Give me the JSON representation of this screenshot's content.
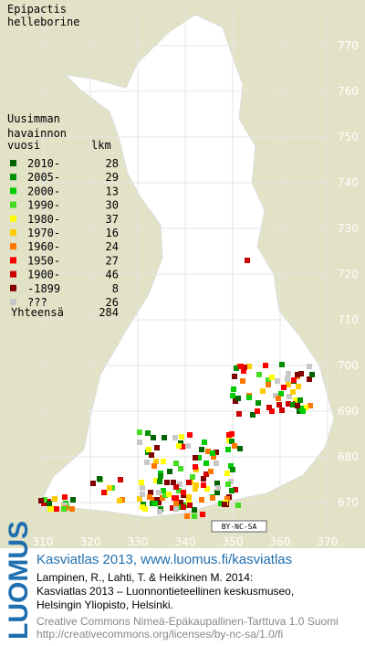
{
  "title": [
    "Epipactis",
    "helleborine"
  ],
  "legend": {
    "header": [
      "Uusimman",
      "havainnon",
      "vuosi"
    ],
    "count_header": "lkm",
    "rows": [
      {
        "label": "2010-",
        "count": 28,
        "color": "#006400"
      },
      {
        "label": "2005-",
        "count": 29,
        "color": "#009000"
      },
      {
        "label": "2000-",
        "count": 13,
        "color": "#00cc00"
      },
      {
        "label": "1990-",
        "count": 30,
        "color": "#44dd22"
      },
      {
        "label": "1980-",
        "count": 37,
        "color": "#ffff00"
      },
      {
        "label": "1970-",
        "count": 16,
        "color": "#ffcc00"
      },
      {
        "label": "1960-",
        "count": 24,
        "color": "#ff7700"
      },
      {
        "label": "1950-",
        "count": 27,
        "color": "#ff0000"
      },
      {
        "label": "1900-",
        "count": 46,
        "color": "#cc0000"
      },
      {
        "label": "-1899",
        "count": 8,
        "color": "#800000"
      },
      {
        "label": "???",
        "count": 26,
        "color": "#c8c8c8"
      }
    ],
    "total_label": "Yhteensä",
    "total": 284
  },
  "y_axis": [
    770,
    760,
    750,
    740,
    730,
    720,
    710,
    700,
    690,
    680,
    670
  ],
  "x_axis": [
    310,
    320,
    330,
    340,
    350,
    360,
    370
  ],
  "license_badge": "BY-NC-SA",
  "brand": "LUOMUS",
  "footer": {
    "link": "Kasviatlas 2013, www.luomus.fi/kasviatlas",
    "citation": [
      "Lampinen, R., Lahti, T. & Heikkinen M. 2014:",
      "Kasviatlas 2013 – Luonnontieteellinen keskusmuseo,",
      "Helsingin Yliopisto, Helsinki."
    ],
    "license": [
      "Creative Commons Nimeä-Epäkaupallinen-Tarttuva 1.0 Suomi",
      "http://creativecommons.org/licenses/by-nc-sa/1.0/fi"
    ]
  }
}
